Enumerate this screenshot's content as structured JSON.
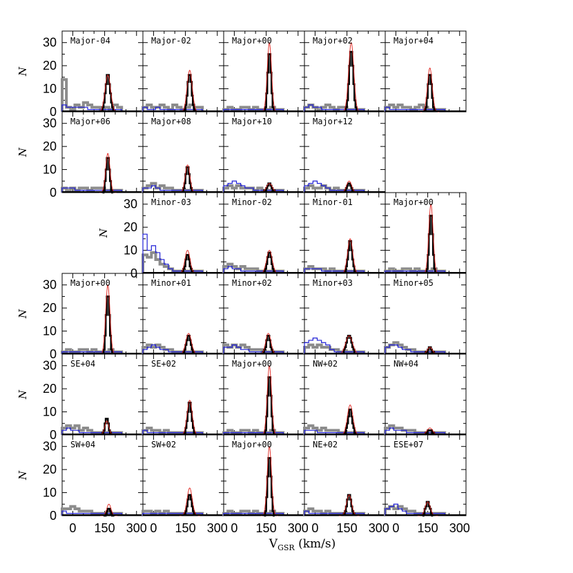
{
  "chart_data": {
    "type": "line",
    "description_series": [
      "black",
      "gray",
      "blue",
      "red"
    ],
    "colors": {
      "black": "#000000",
      "gray": "#8c8c8c",
      "blue": "#1f1fd6",
      "red": "#e0201a"
    },
    "xlabel_main": "V",
    "xlabel_sub": "GSR",
    "xlabel_unit": " (km/s)",
    "ylabel": "N",
    "xlim": [
      -50,
      330
    ],
    "ylim": [
      0,
      35
    ],
    "xticks": [
      0,
      150,
      300
    ],
    "yticks": [
      0,
      10,
      20,
      30
    ],
    "panels": [
      {
        "row": 0,
        "col": 0,
        "label": "Major-04",
        "peak": 16,
        "mu": 165,
        "sigma": 13,
        "gauss": 16,
        "gray": [
          14,
          2,
          1,
          3,
          2,
          4,
          3,
          2,
          2,
          1,
          2,
          1,
          3,
          2
        ],
        "blue": [
          3,
          2,
          2,
          2,
          2,
          2,
          1,
          1,
          1,
          1,
          1,
          1,
          1,
          1
        ]
      },
      {
        "row": 0,
        "col": 1,
        "label": "Major-02",
        "peak": 17,
        "mu": 170,
        "sigma": 12,
        "gauss": 18,
        "gray": [
          2,
          3,
          2,
          2,
          3,
          2,
          1,
          3,
          2,
          1,
          2,
          3,
          2,
          2
        ],
        "blue": [
          2,
          1,
          1,
          2,
          1,
          1,
          1,
          1,
          1,
          1,
          1,
          1,
          1,
          1
        ]
      },
      {
        "row": 0,
        "col": 2,
        "label": "Major+00",
        "peak": 26,
        "mu": 165,
        "sigma": 10,
        "gauss": 30,
        "gray": [
          1,
          2,
          1,
          1,
          2,
          2,
          1,
          2,
          1,
          1,
          1,
          2,
          1,
          1
        ],
        "blue": [
          1,
          1,
          1,
          1,
          1,
          1,
          1,
          1,
          1,
          1,
          1,
          1,
          1,
          1
        ]
      },
      {
        "row": 0,
        "col": 3,
        "label": "Major+02",
        "peak": 27,
        "mu": 170,
        "sigma": 12,
        "gauss": 30,
        "gray": [
          2,
          3,
          2,
          1,
          2,
          3,
          2,
          1,
          2,
          2,
          1,
          1,
          1,
          1
        ],
        "blue": [
          2,
          3,
          2,
          2,
          1,
          1,
          1,
          1,
          1,
          1,
          1,
          1,
          1,
          1
        ]
      },
      {
        "row": 0,
        "col": 4,
        "label": "Major+04",
        "peak": 17,
        "mu": 160,
        "sigma": 11,
        "gauss": 19,
        "gray": [
          2,
          3,
          2,
          3,
          2,
          2,
          1,
          2,
          3,
          2,
          1,
          1,
          1,
          1
        ],
        "blue": [
          2,
          1,
          1,
          1,
          1,
          1,
          1,
          1,
          1,
          1,
          1,
          1,
          1,
          1
        ]
      },
      {
        "row": 1,
        "col": 0,
        "label": "Major+06",
        "peak": 16,
        "mu": 165,
        "sigma": 10,
        "gauss": 17,
        "gray": [
          2,
          1,
          2,
          1,
          2,
          2,
          1,
          2,
          2,
          2,
          1,
          1,
          1,
          1
        ],
        "blue": [
          2,
          2,
          2,
          1,
          1,
          1,
          1,
          1,
          1,
          1,
          1,
          1,
          1,
          1
        ]
      },
      {
        "row": 1,
        "col": 1,
        "label": "Major+08",
        "peak": 11,
        "mu": 160,
        "sigma": 11,
        "gauss": 12,
        "gray": [
          2,
          3,
          4,
          2,
          3,
          2,
          2,
          1,
          1,
          1,
          1,
          1,
          1,
          1
        ],
        "blue": [
          2,
          2,
          3,
          2,
          1,
          1,
          1,
          1,
          1,
          1,
          1,
          1,
          1,
          1
        ]
      },
      {
        "row": 1,
        "col": 2,
        "label": "Major+10",
        "peak": 4,
        "mu": 165,
        "sigma": 14,
        "gauss": 4,
        "gray": [
          2,
          3,
          2,
          3,
          2,
          2,
          2,
          1,
          2,
          1,
          1,
          1,
          1,
          1
        ],
        "blue": [
          3,
          4,
          5,
          4,
          3,
          2,
          2,
          1,
          1,
          1,
          1,
          1,
          1,
          1
        ]
      },
      {
        "row": 1,
        "col": 3,
        "label": "Major+12",
        "peak": 4,
        "mu": 160,
        "sigma": 12,
        "gauss": 5,
        "gray": [
          2,
          3,
          2,
          2,
          3,
          2,
          1,
          2,
          1,
          1,
          1,
          1,
          1,
          1
        ],
        "blue": [
          3,
          4,
          5,
          4,
          3,
          2,
          1,
          1,
          1,
          1,
          1,
          1,
          1,
          1
        ]
      },
      {
        "row": 2,
        "col": 1,
        "label": "Minor-03",
        "peak": 8,
        "mu": 160,
        "sigma": 12,
        "gauss": 10,
        "gray": [
          8,
          7,
          9,
          6,
          4,
          3,
          2,
          1,
          1,
          1,
          1,
          1,
          1,
          1
        ],
        "blue": [
          17,
          10,
          12,
          9,
          6,
          4,
          2,
          1,
          1,
          1,
          1,
          1,
          1,
          1
        ]
      },
      {
        "row": 2,
        "col": 2,
        "label": "Minor-02",
        "peak": 9,
        "mu": 165,
        "sigma": 13,
        "gauss": 10,
        "gray": [
          3,
          4,
          3,
          2,
          3,
          2,
          2,
          2,
          1,
          1,
          1,
          1,
          1,
          1
        ],
        "blue": [
          2,
          3,
          2,
          2,
          1,
          1,
          1,
          1,
          1,
          1,
          1,
          1,
          1,
          1
        ]
      },
      {
        "row": 2,
        "col": 3,
        "label": "Minor-01",
        "peak": 14,
        "mu": 165,
        "sigma": 12,
        "gauss": 15,
        "gray": [
          2,
          3,
          2,
          2,
          2,
          1,
          2,
          1,
          1,
          1,
          1,
          1,
          1,
          1
        ],
        "blue": [
          2,
          2,
          2,
          2,
          1,
          1,
          1,
          1,
          1,
          1,
          1,
          1,
          1,
          1
        ]
      },
      {
        "row": 2,
        "col": 4,
        "label": "Major+00",
        "peak": 26,
        "mu": 165,
        "sigma": 10,
        "gauss": 30,
        "gray": [
          1,
          2,
          1,
          1,
          2,
          2,
          1,
          2,
          1,
          1,
          1,
          2,
          1,
          1
        ],
        "blue": [
          1,
          1,
          1,
          1,
          1,
          1,
          1,
          1,
          1,
          1,
          1,
          1,
          1,
          1
        ]
      },
      {
        "row": 3,
        "col": 0,
        "label": "Major+00",
        "peak": 26,
        "mu": 165,
        "sigma": 10,
        "gauss": 30,
        "gray": [
          1,
          2,
          1,
          1,
          2,
          2,
          1,
          2,
          1,
          1,
          1,
          2,
          1,
          1
        ],
        "blue": [
          1,
          1,
          1,
          1,
          1,
          1,
          1,
          1,
          1,
          1,
          1,
          1,
          1,
          1
        ]
      },
      {
        "row": 3,
        "col": 1,
        "label": "Minor+01",
        "peak": 8,
        "mu": 165,
        "sigma": 13,
        "gauss": 9,
        "gray": [
          3,
          4,
          3,
          4,
          3,
          2,
          2,
          1,
          1,
          1,
          1,
          1,
          1,
          1
        ],
        "blue": [
          2,
          3,
          4,
          3,
          2,
          2,
          1,
          1,
          1,
          1,
          1,
          1,
          1,
          1
        ]
      },
      {
        "row": 3,
        "col": 2,
        "label": "Minor+02",
        "peak": 8,
        "mu": 160,
        "sigma": 12,
        "gauss": 9,
        "gray": [
          4,
          3,
          4,
          3,
          4,
          3,
          2,
          2,
          2,
          1,
          1,
          1,
          1,
          1
        ],
        "blue": [
          3,
          3,
          4,
          3,
          2,
          2,
          1,
          1,
          1,
          1,
          1,
          1,
          1,
          1
        ]
      },
      {
        "row": 3,
        "col": 3,
        "label": "Minor+03",
        "peak": 8,
        "mu": 160,
        "sigma": 16,
        "gauss": 8,
        "gray": [
          3,
          4,
          3,
          4,
          3,
          3,
          2,
          2,
          1,
          1,
          1,
          1,
          1,
          1
        ],
        "blue": [
          5,
          6,
          7,
          6,
          5,
          4,
          2,
          1,
          1,
          1,
          1,
          1,
          1,
          1
        ]
      },
      {
        "row": 3,
        "col": 4,
        "label": "Minor+05",
        "peak": 3,
        "mu": 160,
        "sigma": 12,
        "gauss": 3,
        "gray": [
          3,
          4,
          5,
          4,
          3,
          2,
          2,
          1,
          1,
          1,
          1,
          1,
          1,
          1
        ],
        "blue": [
          3,
          4,
          4,
          3,
          2,
          2,
          1,
          1,
          1,
          1,
          1,
          1,
          1,
          1
        ]
      },
      {
        "row": 4,
        "col": 0,
        "label": "SE+04",
        "peak": 7,
        "mu": 160,
        "sigma": 10,
        "gauss": 6,
        "gray": [
          3,
          4,
          3,
          4,
          2,
          3,
          2,
          1,
          1,
          1,
          1,
          1,
          1,
          1
        ],
        "blue": [
          2,
          3,
          2,
          2,
          1,
          1,
          1,
          1,
          1,
          1,
          1,
          1,
          1,
          1
        ]
      },
      {
        "row": 4,
        "col": 1,
        "label": "SE+02",
        "peak": 14,
        "mu": 170,
        "sigma": 12,
        "gauss": 15,
        "gray": [
          2,
          3,
          2,
          2,
          1,
          2,
          1,
          1,
          1,
          1,
          1,
          1,
          1,
          1
        ],
        "blue": [
          2,
          1,
          1,
          1,
          1,
          1,
          1,
          1,
          1,
          1,
          1,
          1,
          1,
          1
        ]
      },
      {
        "row": 4,
        "col": 2,
        "label": "Major+00",
        "peak": 26,
        "mu": 165,
        "sigma": 10,
        "gauss": 30,
        "gray": [
          1,
          2,
          1,
          1,
          2,
          2,
          1,
          2,
          1,
          1,
          1,
          2,
          1,
          1
        ],
        "blue": [
          1,
          1,
          1,
          1,
          1,
          1,
          1,
          1,
          1,
          1,
          1,
          1,
          1,
          1
        ]
      },
      {
        "row": 4,
        "col": 3,
        "label": "NW+02",
        "peak": 11,
        "mu": 165,
        "sigma": 13,
        "gauss": 13,
        "gray": [
          3,
          4,
          3,
          2,
          3,
          2,
          2,
          2,
          1,
          1,
          1,
          1,
          1,
          1
        ],
        "blue": [
          2,
          2,
          2,
          1,
          1,
          1,
          1,
          1,
          1,
          1,
          1,
          1,
          1,
          1
        ]
      },
      {
        "row": 4,
        "col": 4,
        "label": "NW+04",
        "peak": 2,
        "mu": 160,
        "sigma": 14,
        "gauss": 3,
        "gray": [
          3,
          4,
          3,
          3,
          2,
          2,
          2,
          1,
          1,
          1,
          1,
          1,
          1,
          1
        ],
        "blue": [
          2,
          3,
          2,
          2,
          2,
          1,
          1,
          1,
          1,
          1,
          1,
          1,
          1,
          1
        ]
      },
      {
        "row": 5,
        "col": 0,
        "label": "SW+04",
        "peak": 3,
        "mu": 170,
        "sigma": 10,
        "gauss": 5,
        "gray": [
          3,
          3,
          4,
          3,
          2,
          2,
          2,
          1,
          1,
          1,
          1,
          1,
          1,
          1
        ],
        "blue": [
          2,
          1,
          1,
          1,
          1,
          1,
          1,
          1,
          1,
          1,
          1,
          1,
          1,
          1
        ]
      },
      {
        "row": 5,
        "col": 1,
        "label": "SW+02",
        "peak": 9,
        "mu": 170,
        "sigma": 12,
        "gauss": 12,
        "gray": [
          2,
          2,
          1,
          2,
          1,
          2,
          1,
          1,
          1,
          1,
          1,
          1,
          1,
          1
        ],
        "blue": [
          1,
          1,
          1,
          1,
          1,
          1,
          1,
          1,
          1,
          1,
          1,
          1,
          1,
          1
        ]
      },
      {
        "row": 5,
        "col": 2,
        "label": "Major+00",
        "peak": 26,
        "mu": 165,
        "sigma": 10,
        "gauss": 30,
        "gray": [
          1,
          2,
          1,
          1,
          2,
          2,
          1,
          2,
          1,
          1,
          1,
          2,
          1,
          1
        ],
        "blue": [
          1,
          1,
          1,
          1,
          1,
          1,
          1,
          1,
          1,
          1,
          1,
          1,
          1,
          1
        ]
      },
      {
        "row": 5,
        "col": 3,
        "label": "NE+02",
        "peak": 9,
        "mu": 160,
        "sigma": 12,
        "gauss": 9,
        "gray": [
          2,
          3,
          2,
          2,
          1,
          2,
          1,
          1,
          1,
          1,
          1,
          1,
          1,
          1
        ],
        "blue": [
          2,
          1,
          1,
          1,
          1,
          1,
          1,
          1,
          1,
          1,
          1,
          1,
          1,
          1
        ]
      },
      {
        "row": 5,
        "col": 4,
        "label": "ESE+07",
        "peak": 6,
        "mu": 150,
        "sigma": 12,
        "gauss": 6,
        "gray": [
          3,
          4,
          3,
          4,
          3,
          2,
          2,
          1,
          1,
          1,
          1,
          1,
          1,
          1
        ],
        "blue": [
          3,
          4,
          5,
          3,
          2,
          1,
          1,
          1,
          1,
          1,
          1,
          1,
          1,
          1
        ]
      }
    ]
  }
}
